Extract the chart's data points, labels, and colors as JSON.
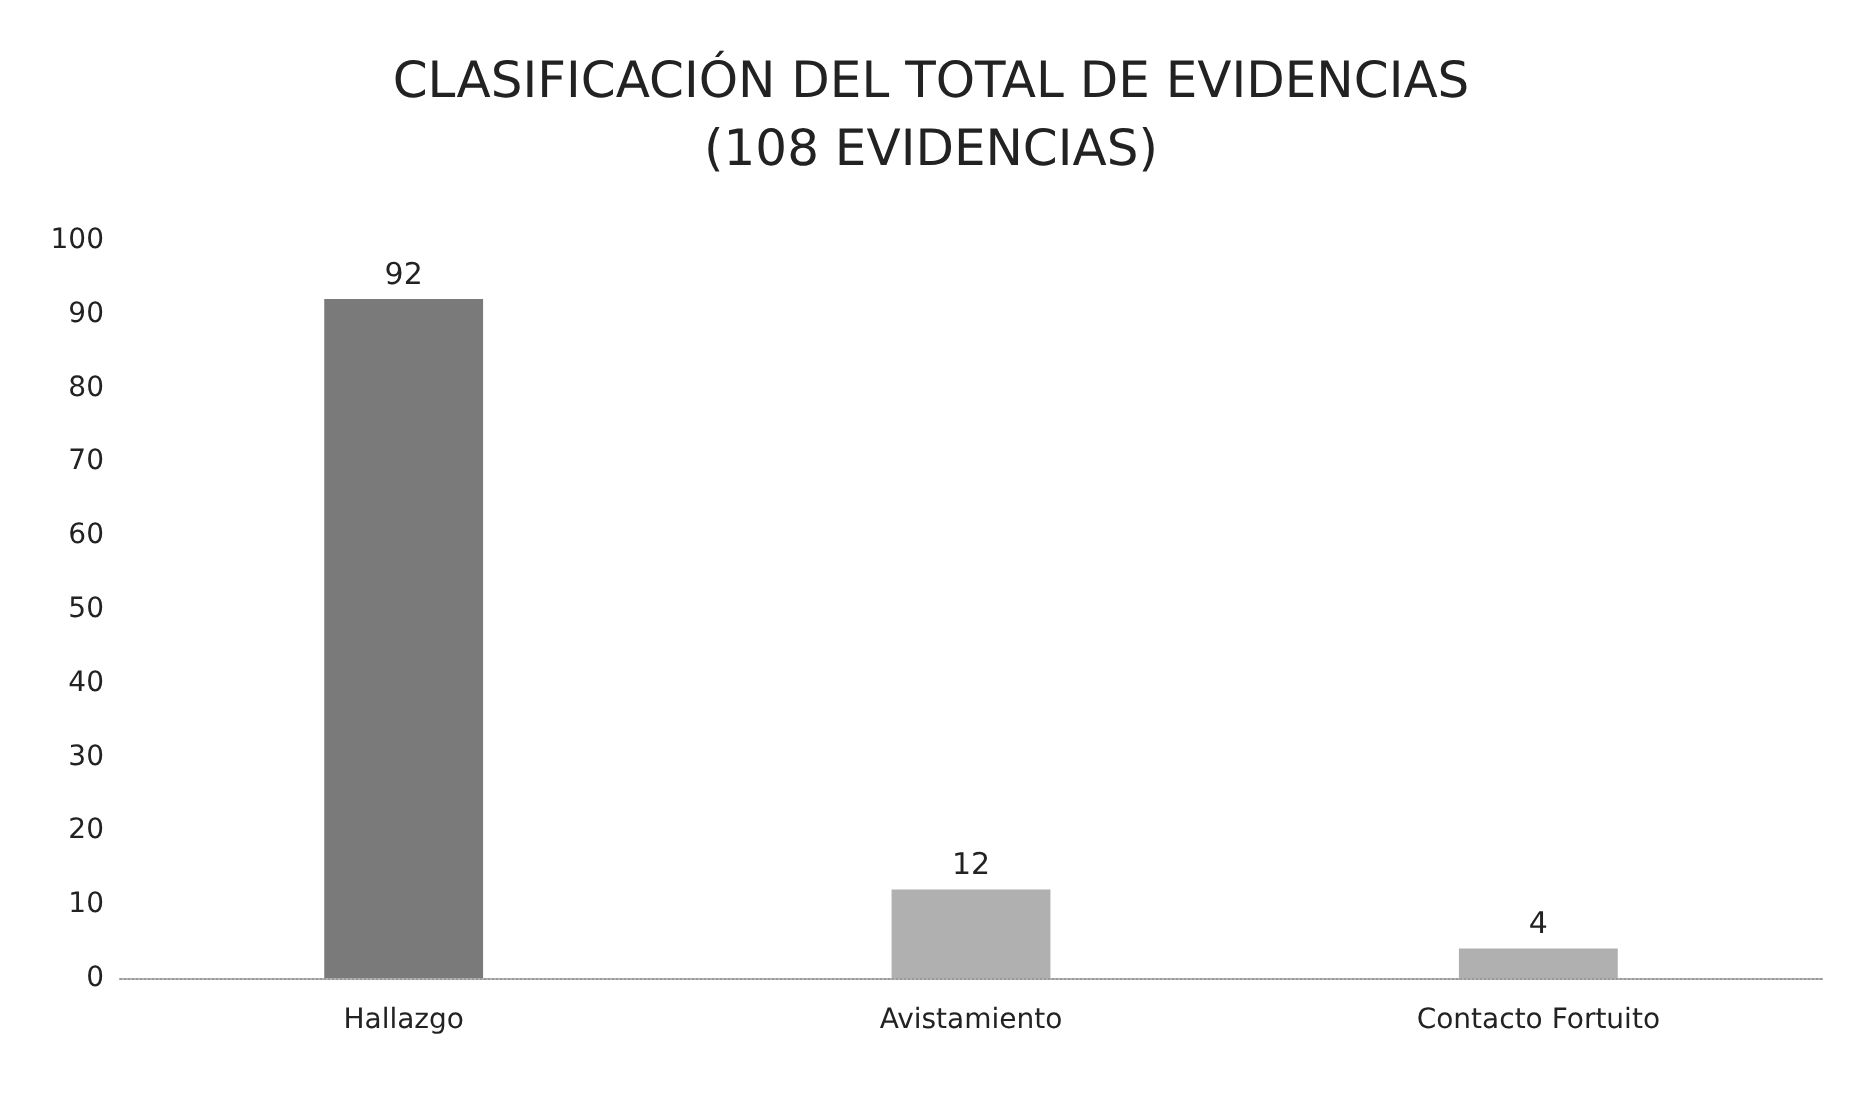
{
  "chart_data": {
    "type": "bar",
    "title": "CLASIFICACIÓN DEL TOTAL DE EVIDENCIAS\n(108 EVIDENCIAS)",
    "categories": [
      "Hallazgo",
      "Avistamiento",
      "Contacto Fortuito"
    ],
    "values": [
      92,
      12,
      4
    ],
    "colors": [
      "#7a7a7a",
      "#b0b0b0",
      "#b0b0b0"
    ],
    "ylim": [
      0,
      100
    ],
    "yticks": [
      0,
      10,
      20,
      30,
      40,
      50,
      60,
      70,
      80,
      90,
      100
    ],
    "grid": false,
    "data_labels": true
  }
}
